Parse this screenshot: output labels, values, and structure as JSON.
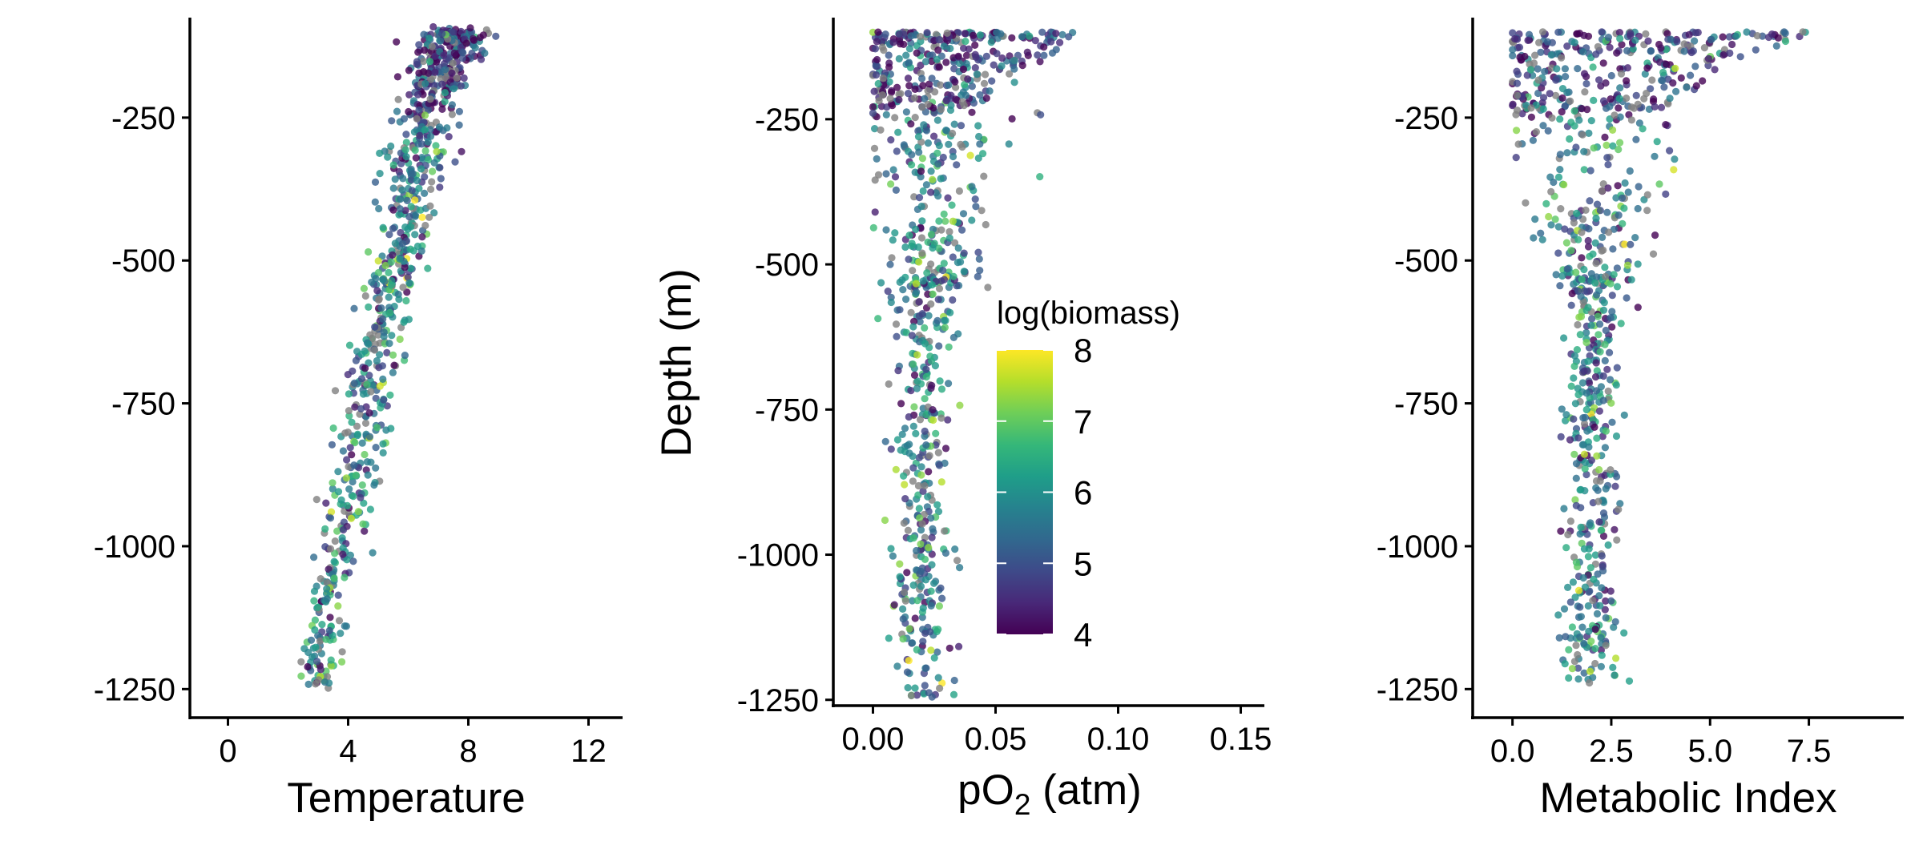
{
  "colors": {
    "background": "#ffffff",
    "axis": "#000000",
    "missing_biomass": "#808080",
    "viridis": [
      "#440154",
      "#482878",
      "#3e4a89",
      "#31688e",
      "#26828e",
      "#1f9e89",
      "#35b779",
      "#6ece58",
      "#b5de2b",
      "#fde725"
    ]
  },
  "legend": {
    "title": "log(biomass)",
    "ticks": [
      {
        "value": 8,
        "label": "8"
      },
      {
        "value": 7,
        "label": "7"
      },
      {
        "value": 6,
        "label": "6"
      },
      {
        "value": 5,
        "label": "5"
      },
      {
        "value": 4,
        "label": "4"
      }
    ],
    "range": [
      4,
      8
    ]
  },
  "chart_data": [
    {
      "type": "scatter",
      "xlabel": "Temperature",
      "ylabel": "",
      "xlim": [
        -0.6,
        13.0
      ],
      "ylim": [
        -1300,
        -75
      ],
      "xticks": [
        {
          "value": 0,
          "label": "0"
        },
        {
          "value": 4,
          "label": "4"
        },
        {
          "value": 8,
          "label": "8"
        },
        {
          "value": 12,
          "label": "12"
        }
      ],
      "yticks": [
        {
          "value": -250,
          "label": "-250"
        },
        {
          "value": -500,
          "label": "-500"
        },
        {
          "value": -750,
          "label": "-750"
        },
        {
          "value": -1000,
          "label": "-1000"
        },
        {
          "value": -1250,
          "label": "-1250"
        }
      ],
      "color_variable": "log(biomass)",
      "shape": {
        "depth_top": -100,
        "depth_bottom": -1245,
        "x_at_top": 7.5,
        "x_at_bottom": 2.9,
        "curve": 0.55,
        "spread_top": 0.55,
        "spread_bottom": 0.35,
        "seed": 11,
        "count": 880
      }
    },
    {
      "type": "scatter",
      "xlabel": "pO₂ (atm)",
      "xlabel_main": "pO",
      "xlabel_sub": "2",
      "xlabel_rest": " (atm)",
      "ylabel": "Depth (m)",
      "xlim": [
        -0.008,
        0.158
      ],
      "ylim": [
        -1260,
        -75
      ],
      "xticks": [
        {
          "value": 0.0,
          "label": "0.00"
        },
        {
          "value": 0.05,
          "label": "0.05"
        },
        {
          "value": 0.1,
          "label": "0.10"
        },
        {
          "value": 0.15,
          "label": "0.15"
        }
      ],
      "yticks": [
        {
          "value": -250,
          "label": "-250"
        },
        {
          "value": -500,
          "label": "-500"
        },
        {
          "value": -750,
          "label": "-750"
        },
        {
          "value": -1000,
          "label": "-1000"
        },
        {
          "value": -1250,
          "label": "-1250"
        }
      ],
      "color_variable": "log(biomass)",
      "shape": {
        "surface_max": 0.085,
        "column_center": 0.02,
        "column_spread": 0.006,
        "mid_center": 0.025,
        "mid_spread": 0.012,
        "depth_bottom": -1245,
        "seed": 23,
        "count": 880
      }
    },
    {
      "type": "scatter",
      "xlabel": "Metabolic Index",
      "ylabel": "",
      "xlim": [
        -0.5,
        9.8
      ],
      "ylim": [
        -1300,
        -75
      ],
      "xticks": [
        {
          "value": 0.0,
          "label": "0.0"
        },
        {
          "value": 2.5,
          "label": "2.5"
        },
        {
          "value": 5.0,
          "label": "5.0"
        },
        {
          "value": 7.5,
          "label": "7.5"
        }
      ],
      "yticks": [
        {
          "value": -250,
          "label": "-250"
        },
        {
          "value": -500,
          "label": "-500"
        },
        {
          "value": -750,
          "label": "-750"
        },
        {
          "value": -1000,
          "label": "-1000"
        },
        {
          "value": -1250,
          "label": "-1250"
        }
      ],
      "color_variable": "log(biomass)",
      "shape": {
        "surface_max": 7.5,
        "column_center": 2.0,
        "column_spread": 0.35,
        "mid_center": 2.0,
        "mid_spread": 0.9,
        "depth_bottom": -1245,
        "seed": 37,
        "count": 880
      }
    }
  ]
}
